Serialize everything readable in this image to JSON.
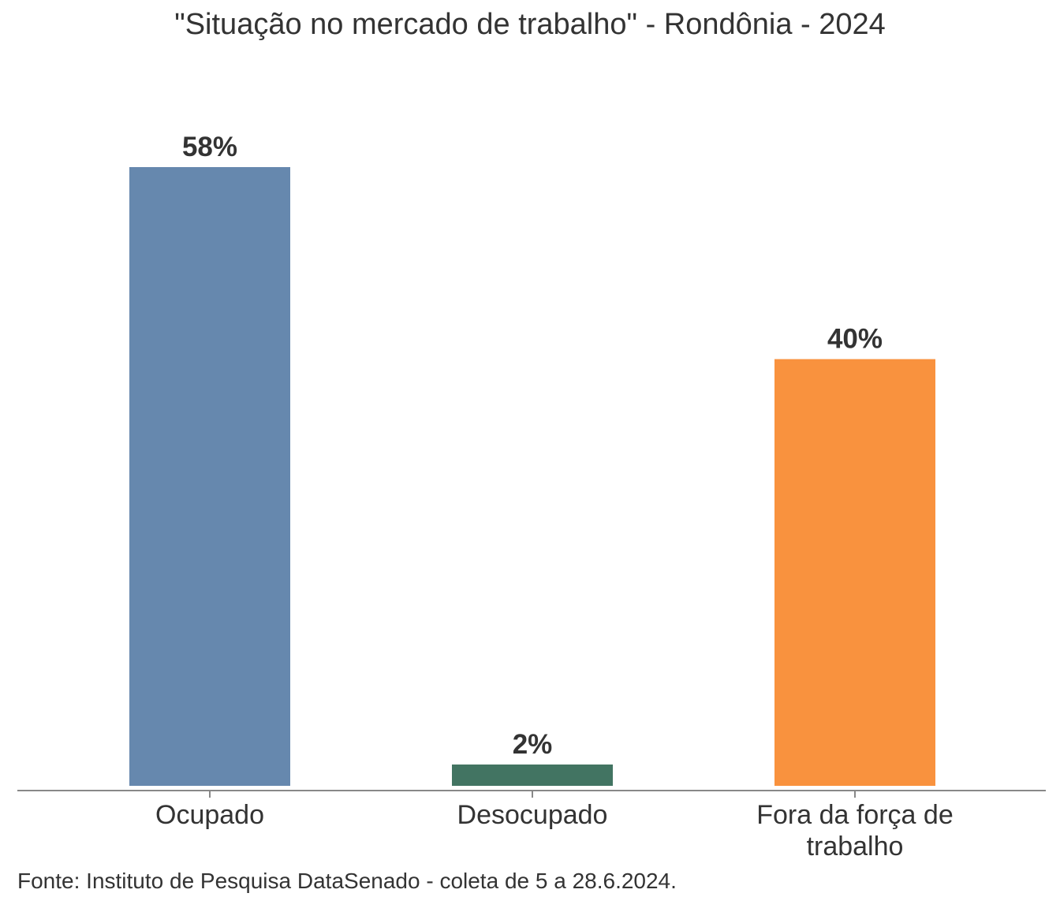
{
  "chart_data": {
    "type": "bar",
    "title": "\"Situação no mercado de trabalho\" - Rondônia - 2024",
    "categories": [
      "Ocupado",
      "Desocupado",
      "Fora da força de trabalho"
    ],
    "category_lines": [
      [
        "Ocupado"
      ],
      [
        "Desocupado"
      ],
      [
        "Fora da força de",
        "trabalho"
      ]
    ],
    "values": [
      58,
      2,
      40
    ],
    "value_labels": [
      "58%",
      "2%",
      "40%"
    ],
    "colors": [
      "#6688AE",
      "#427462",
      "#F9923E"
    ],
    "ylim": [
      0,
      58
    ],
    "grid": false,
    "legend": "none"
  },
  "footer": {
    "source": "Fonte: Instituto de Pesquisa DataSenado - coleta de 5 a 28.6.2024."
  }
}
